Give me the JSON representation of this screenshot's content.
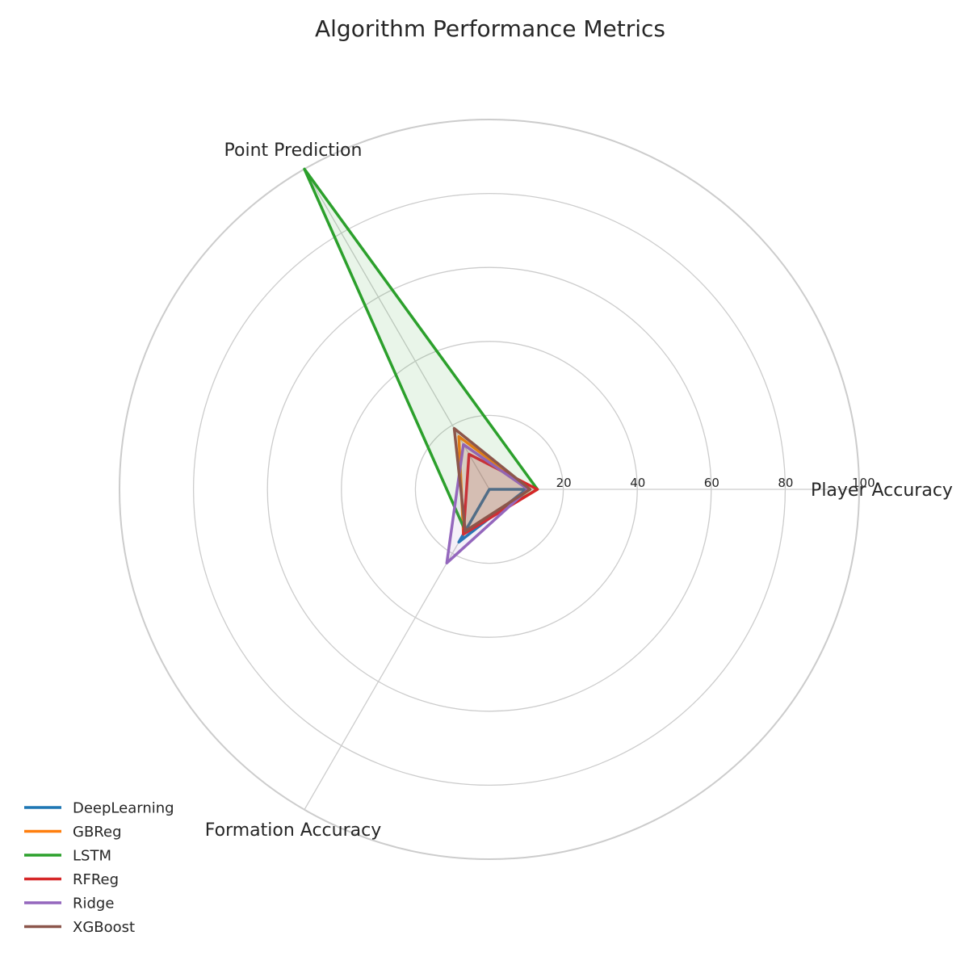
{
  "chart_data": {
    "type": "radar",
    "title": "Algorithm Performance Metrics",
    "axes": [
      "Player Accuracy",
      "Point Prediction",
      "Formation Accuracy"
    ],
    "rlim": [
      0,
      100
    ],
    "rticks": [
      20,
      40,
      60,
      80,
      100
    ],
    "grid": true,
    "legend_position": "lower-left",
    "series": [
      {
        "name": "DeepLearning",
        "color": "#1f77b4",
        "values": [
          10,
          0,
          16.5
        ],
        "fill": false
      },
      {
        "name": "GBReg",
        "color": "#ff7f0e",
        "values": [
          11,
          16.5,
          14
        ],
        "fill": true
      },
      {
        "name": "LSTM",
        "color": "#2ca02c",
        "values": [
          13,
          100,
          13
        ],
        "fill": true
      },
      {
        "name": "RFReg",
        "color": "#d62728",
        "values": [
          13,
          11,
          14
        ],
        "fill": true
      },
      {
        "name": "Ridge",
        "color": "#9467bd",
        "values": [
          10.5,
          14,
          23
        ],
        "fill": true
      },
      {
        "name": "XGBoost",
        "color": "#8c564b",
        "values": [
          11,
          19,
          13
        ],
        "fill": true
      }
    ]
  }
}
